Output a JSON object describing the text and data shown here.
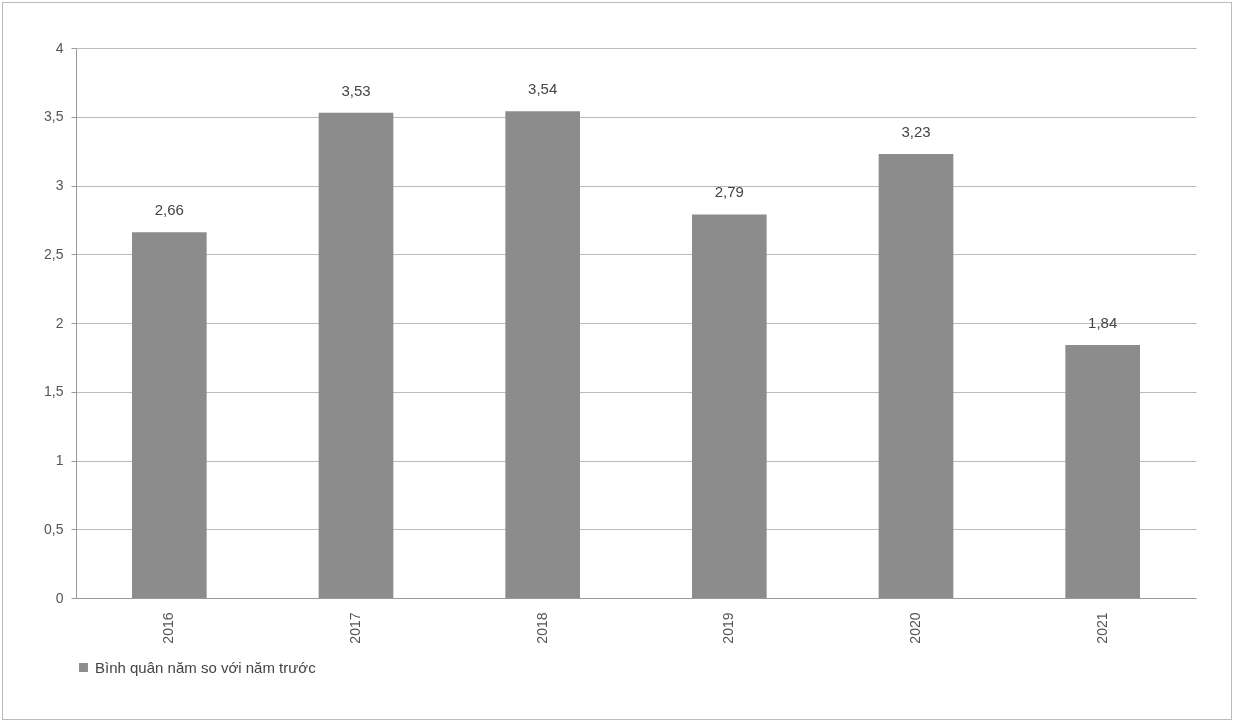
{
  "chart_data": {
    "type": "bar",
    "categories": [
      "2016",
      "2017",
      "2018",
      "2019",
      "2020",
      "2021"
    ],
    "series": [
      {
        "name": "Bình quân năm so với năm trước",
        "color": "#8c8c8c",
        "values": [
          2.66,
          3.53,
          3.54,
          2.79,
          3.23,
          1.84
        ],
        "value_labels": [
          "2,66",
          "3,53",
          "3,54",
          "2,79",
          "3,23",
          "1,84"
        ]
      }
    ],
    "ylim": [
      0,
      4
    ],
    "yticks": [
      0,
      {
        "value": 0.5,
        "label": "0,5"
      },
      1,
      {
        "value": 1.5,
        "label": "1,5"
      },
      2,
      {
        "value": 2.5,
        "label": "2,5"
      },
      3,
      {
        "value": 3.5,
        "label": "3,5"
      },
      4
    ],
    "grid": "y",
    "legend": "bottom"
  }
}
